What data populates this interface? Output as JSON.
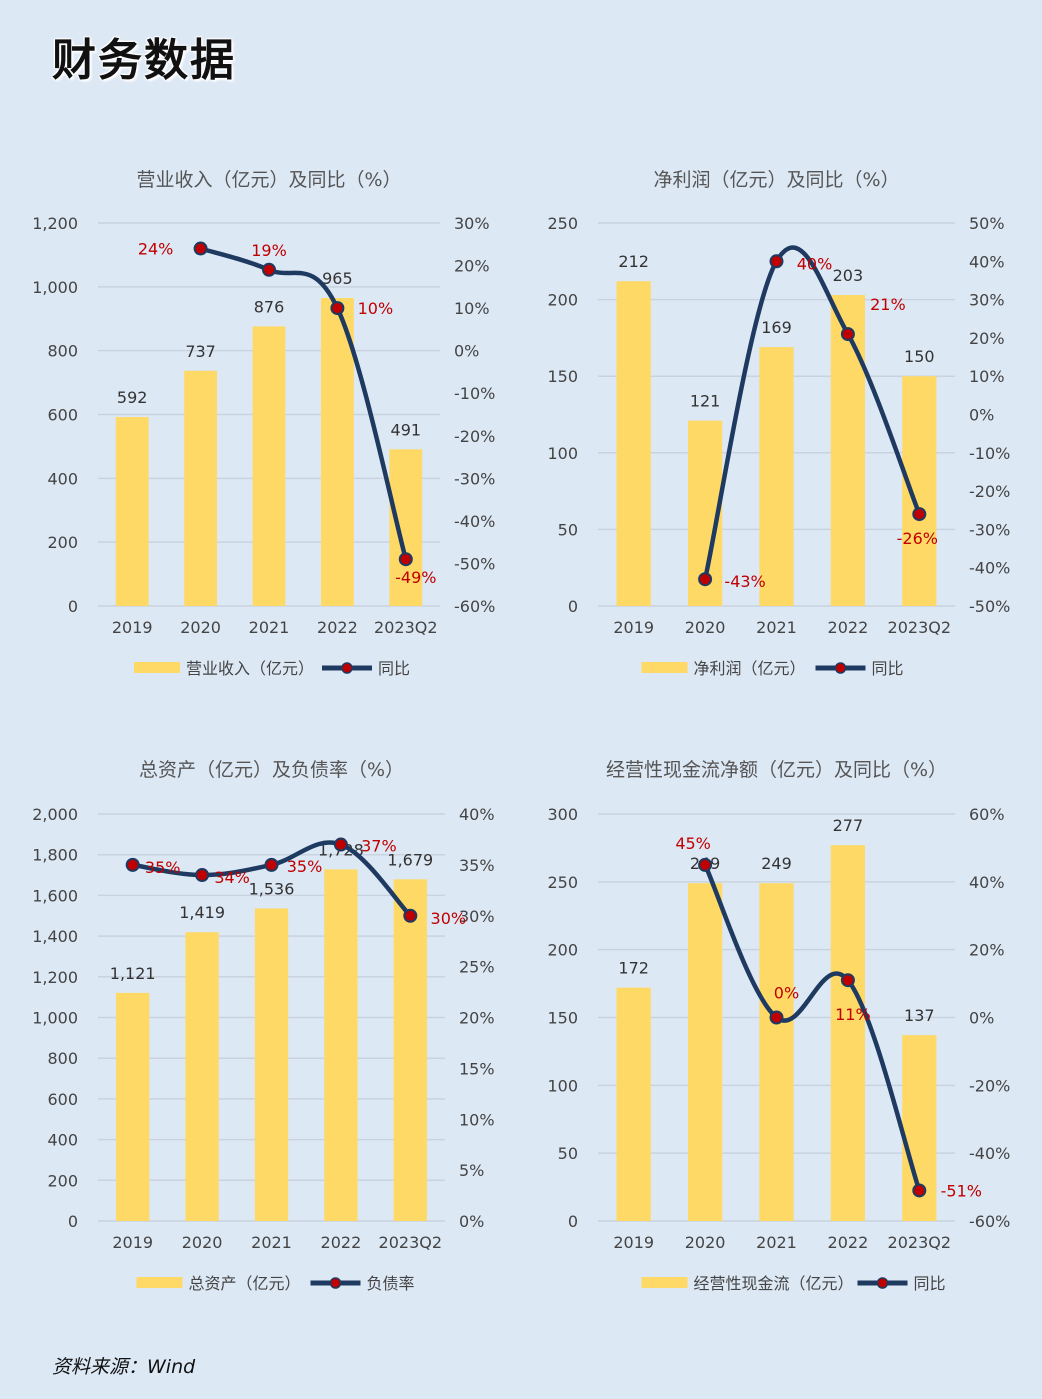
{
  "page_title": "财务数据",
  "source_note": "资料来源：Wind",
  "colors": {
    "bar": "#ffd966",
    "line": "#1f3a60",
    "marker": "#c00000",
    "label_red": "#c00000"
  },
  "chart_data": [
    {
      "type": "bar",
      "title": "营业收入（亿元）及同比（%）",
      "categories": [
        "2019",
        "2020",
        "2021",
        "2022",
        "2023Q2"
      ],
      "series": [
        {
          "name": "营业收入（亿元）",
          "values": [
            592,
            737,
            876,
            965,
            491
          ],
          "labels": [
            "592",
            "737",
            "876",
            "965",
            "491"
          ]
        },
        {
          "name": "同比",
          "type": "line",
          "axis": "right",
          "values": [
            null,
            24,
            19,
            10,
            -49
          ],
          "labels": [
            "",
            "24%",
            "19%",
            "10%",
            "-49%"
          ]
        }
      ],
      "y_left": {
        "ylim": [
          0,
          1200
        ],
        "ticks": [
          0,
          200,
          400,
          600,
          800,
          1000,
          1200
        ],
        "tick_labels": [
          "0",
          "200",
          "400",
          "600",
          "800",
          "1,000",
          "1,200"
        ]
      },
      "y_right": {
        "ylim": [
          -60,
          30
        ],
        "ticks": [
          -60,
          -50,
          -40,
          -30,
          -20,
          -10,
          0,
          10,
          20,
          30
        ],
        "tick_labels": [
          "-60%",
          "-50%",
          "-40%",
          "-30%",
          "-20%",
          "-10%",
          "0%",
          "10%",
          "20%",
          "30%"
        ]
      },
      "grid": true,
      "legend": "bottom"
    },
    {
      "type": "bar",
      "title": "净利润（亿元）及同比（%）",
      "categories": [
        "2019",
        "2020",
        "2021",
        "2022",
        "2023Q2"
      ],
      "series": [
        {
          "name": "净利润（亿元）",
          "values": [
            212,
            121,
            169,
            203,
            150
          ],
          "labels": [
            "212",
            "121",
            "169",
            "203",
            "150"
          ]
        },
        {
          "name": "同比",
          "type": "line",
          "axis": "right",
          "values": [
            null,
            -43,
            40,
            21,
            -26
          ],
          "labels": [
            "",
            "-43%",
            "40%",
            "21%",
            "-26%"
          ]
        }
      ],
      "y_left": {
        "ylim": [
          0,
          250
        ],
        "ticks": [
          0,
          50,
          100,
          150,
          200,
          250
        ],
        "tick_labels": [
          "0",
          "50",
          "100",
          "150",
          "200",
          "250"
        ]
      },
      "y_right": {
        "ylim": [
          -50,
          50
        ],
        "ticks": [
          -50,
          -40,
          -30,
          -20,
          -10,
          0,
          10,
          20,
          30,
          40,
          50
        ],
        "tick_labels": [
          "-50%",
          "-40%",
          "-30%",
          "-20%",
          "-10%",
          "0%",
          "10%",
          "20%",
          "30%",
          "40%",
          "50%"
        ]
      },
      "grid": true,
      "legend": "bottom"
    },
    {
      "type": "bar",
      "title": "总资产（亿元）及负债率（%）",
      "categories": [
        "2019",
        "2020",
        "2021",
        "2022",
        "2023Q2"
      ],
      "series": [
        {
          "name": "总资产（亿元）",
          "values": [
            1121,
            1419,
            1536,
            1728,
            1679
          ],
          "labels": [
            "1,121",
            "1,419",
            "1,536",
            "1,728",
            "1,679"
          ]
        },
        {
          "name": "负债率",
          "type": "line",
          "axis": "right",
          "values": [
            35,
            34,
            35,
            37,
            30
          ],
          "labels": [
            "35%",
            "34%",
            "35%",
            "37%",
            "30%"
          ]
        }
      ],
      "y_left": {
        "ylim": [
          0,
          2000
        ],
        "ticks": [
          0,
          200,
          400,
          600,
          800,
          1000,
          1200,
          1400,
          1600,
          1800,
          2000
        ],
        "tick_labels": [
          "0",
          "200",
          "400",
          "600",
          "800",
          "1,000",
          "1,200",
          "1,400",
          "1,600",
          "1,800",
          "2,000"
        ]
      },
      "y_right": {
        "ylim": [
          0,
          40
        ],
        "ticks": [
          0,
          5,
          10,
          15,
          20,
          25,
          30,
          35,
          40
        ],
        "tick_labels": [
          "0%",
          "5%",
          "10%",
          "15%",
          "20%",
          "25%",
          "30%",
          "35%",
          "40%"
        ]
      },
      "grid": true,
      "legend": "bottom"
    },
    {
      "type": "bar",
      "title": "经营性现金流净额（亿元）及同比（%）",
      "categories": [
        "2019",
        "2020",
        "2021",
        "2022",
        "2023Q2"
      ],
      "series": [
        {
          "name": "经营性现金流（亿元）",
          "values": [
            172,
            249,
            249,
            277,
            137
          ],
          "labels": [
            "172",
            "249",
            "249",
            "277",
            "137"
          ]
        },
        {
          "name": "同比",
          "type": "line",
          "axis": "right",
          "values": [
            null,
            45,
            0,
            11,
            -51
          ],
          "labels": [
            "",
            "45%",
            "0%",
            "11%",
            "-51%"
          ]
        }
      ],
      "y_left": {
        "ylim": [
          0,
          300
        ],
        "ticks": [
          0,
          50,
          100,
          150,
          200,
          250,
          300
        ],
        "tick_labels": [
          "0",
          "50",
          "100",
          "150",
          "200",
          "250",
          "300"
        ]
      },
      "y_right": {
        "ylim": [
          -60,
          60
        ],
        "ticks": [
          -60,
          -40,
          -20,
          0,
          20,
          40,
          60
        ],
        "tick_labels": [
          "-60%",
          "-40%",
          "-20%",
          "0%",
          "20%",
          "40%",
          "60%"
        ]
      },
      "grid": true,
      "legend": "bottom"
    }
  ]
}
